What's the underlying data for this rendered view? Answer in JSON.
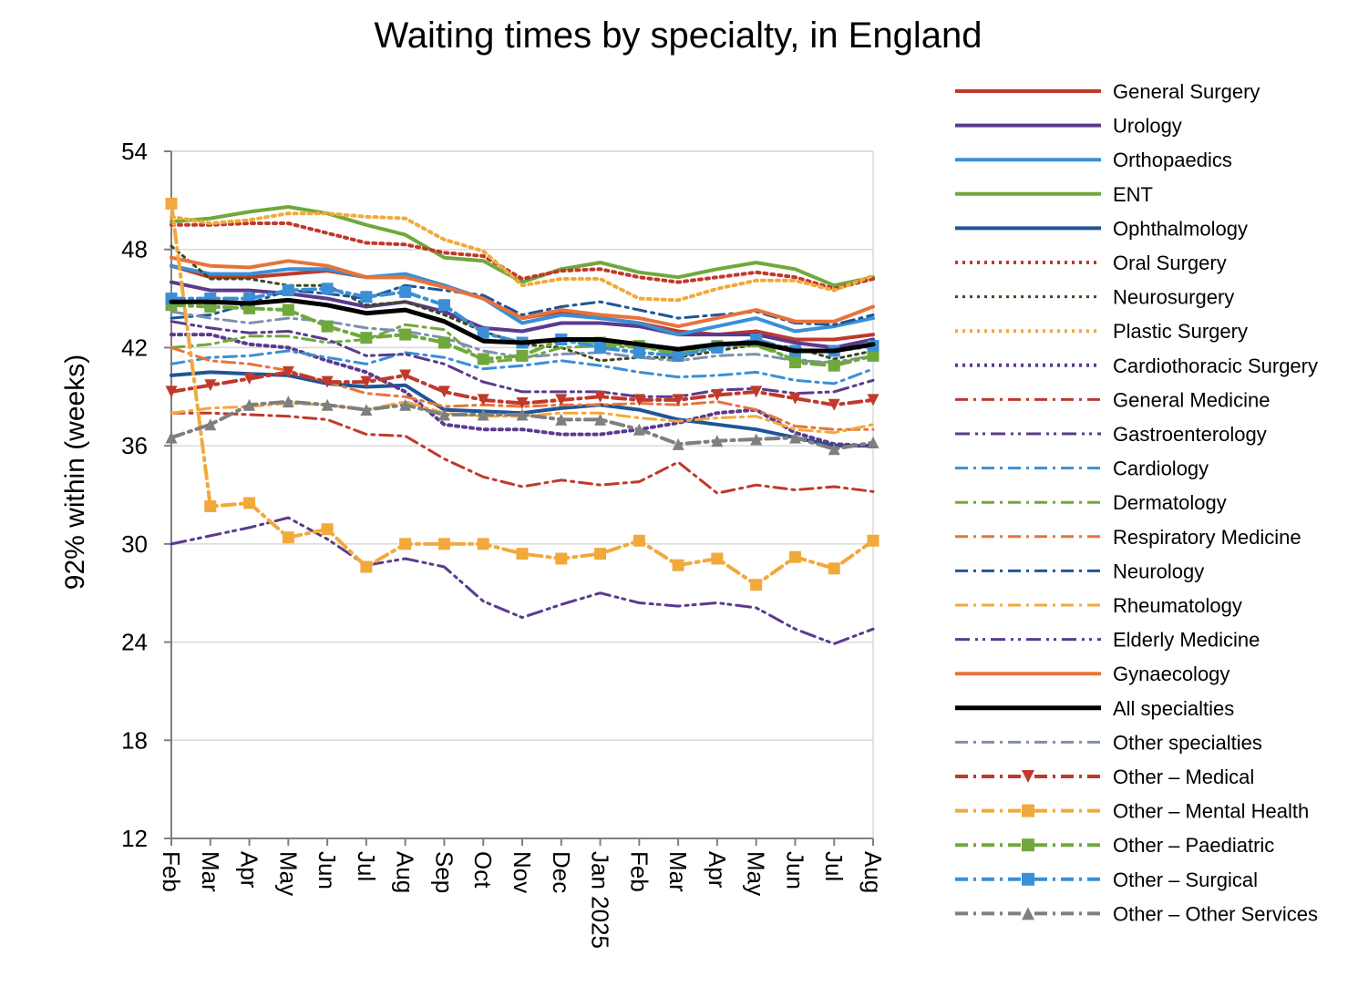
{
  "chart_data": {
    "type": "line",
    "title": "Waiting times by specialty, in England",
    "xlabel": "",
    "ylabel": "92% within  (weeks)",
    "ylim": [
      12,
      54
    ],
    "yticks": [
      12,
      18,
      24,
      30,
      36,
      42,
      48,
      54
    ],
    "grid": "horizontal",
    "legend_position": "right",
    "categories": [
      "Feb",
      "Mar",
      "Apr",
      "May",
      "Jun",
      "Jul",
      "Aug",
      "Sep",
      "Oct",
      "Nov",
      "Dec",
      "Jan 2025",
      "Feb",
      "Mar",
      "Apr",
      "May",
      "Jun",
      "Jul",
      "Aug"
    ],
    "series": [
      {
        "name": "General Surgery",
        "color": "#c0392b",
        "style": "solid",
        "width": 4,
        "values": [
          47.0,
          46.3,
          46.3,
          46.5,
          46.7,
          46.3,
          46.3,
          45.8,
          45.0,
          43.8,
          44.2,
          43.8,
          43.5,
          43.0,
          42.8,
          43.0,
          42.5,
          42.5,
          42.8
        ]
      },
      {
        "name": "Urology",
        "color": "#5b3a8e",
        "style": "solid",
        "width": 4,
        "values": [
          46.0,
          45.5,
          45.5,
          45.3,
          45.0,
          44.5,
          44.8,
          44.2,
          43.2,
          43.0,
          43.5,
          43.5,
          43.3,
          42.8,
          42.8,
          42.8,
          42.3,
          42.0,
          42.5
        ]
      },
      {
        "name": "Orthopaedics",
        "color": "#3a8fd6",
        "style": "solid",
        "width": 4,
        "values": [
          47.0,
          46.5,
          46.5,
          46.8,
          46.8,
          46.3,
          46.5,
          45.8,
          45.0,
          43.5,
          44.0,
          43.8,
          43.5,
          42.8,
          43.3,
          43.8,
          43.0,
          43.3,
          43.8
        ]
      },
      {
        "name": "ENT",
        "color": "#70a83c",
        "style": "solid",
        "width": 4,
        "values": [
          49.7,
          49.9,
          50.3,
          50.6,
          50.2,
          49.5,
          48.9,
          47.5,
          47.3,
          46.0,
          46.8,
          47.2,
          46.6,
          46.3,
          46.8,
          47.2,
          46.8,
          45.8,
          46.3
        ]
      },
      {
        "name": "Ophthalmology",
        "color": "#1f5596",
        "style": "solid",
        "width": 4,
        "values": [
          40.3,
          40.5,
          40.4,
          40.3,
          39.8,
          39.6,
          39.7,
          38.2,
          38.1,
          38.0,
          38.3,
          38.5,
          38.2,
          37.6,
          37.3,
          37.0,
          36.5,
          36.0,
          36.0
        ]
      },
      {
        "name": "Oral Surgery",
        "color": "#c0392b",
        "style": "dot",
        "width": 4,
        "values": [
          49.5,
          49.5,
          49.6,
          49.6,
          49.0,
          48.4,
          48.3,
          47.8,
          47.6,
          46.2,
          46.7,
          46.8,
          46.3,
          46.0,
          46.3,
          46.6,
          46.3,
          45.6,
          46.2
        ]
      },
      {
        "name": "Neurosurgery",
        "color": "#3b4a1e",
        "style": "dot",
        "width": 3,
        "values": [
          48.2,
          46.2,
          46.2,
          45.8,
          45.8,
          44.6,
          44.8,
          44.0,
          43.0,
          42.2,
          42.0,
          41.2,
          41.4,
          41.4,
          41.8,
          42.2,
          42.0,
          41.3,
          41.8
        ]
      },
      {
        "name": "Plastic Surgery",
        "color": "#f2a93b",
        "style": "dot",
        "width": 4,
        "values": [
          50.0,
          49.6,
          49.8,
          50.2,
          50.2,
          50.0,
          49.9,
          48.6,
          47.9,
          45.8,
          46.2,
          46.2,
          45.0,
          44.9,
          45.6,
          46.1,
          46.1,
          45.5,
          46.4
        ]
      },
      {
        "name": "Cardiothoracic Surgery",
        "color": "#5b3a8e",
        "style": "dot",
        "width": 4,
        "values": [
          42.8,
          42.8,
          42.2,
          42.0,
          41.2,
          40.5,
          39.3,
          37.3,
          37.0,
          37.0,
          36.7,
          36.7,
          37.0,
          37.4,
          38.0,
          38.2,
          36.8,
          36.1,
          36.0
        ]
      },
      {
        "name": "General Medicine",
        "color": "#c0392b",
        "style": "dashdot",
        "width": 3,
        "values": [
          38.0,
          38.0,
          37.9,
          37.8,
          37.6,
          36.7,
          36.6,
          35.2,
          34.1,
          33.5,
          33.9,
          33.6,
          33.8,
          35.0,
          33.1,
          33.6,
          33.3,
          33.5,
          33.2
        ]
      },
      {
        "name": "Gastroenterology",
        "color": "#5b3a8e",
        "style": "dashdotdot",
        "width": 3,
        "values": [
          30.0,
          30.5,
          31.0,
          31.6,
          30.3,
          28.7,
          29.1,
          28.6,
          26.5,
          25.5,
          26.3,
          27.0,
          26.4,
          26.2,
          26.4,
          26.1,
          24.8,
          23.9,
          24.8
        ]
      },
      {
        "name": "Cardiology",
        "color": "#3a8fd6",
        "style": "dashdot",
        "width": 3,
        "values": [
          41.0,
          41.4,
          41.5,
          41.8,
          41.4,
          41.0,
          41.7,
          41.4,
          40.7,
          40.9,
          41.2,
          40.9,
          40.5,
          40.2,
          40.3,
          40.5,
          40.0,
          39.8,
          40.7
        ]
      },
      {
        "name": "Dermatology",
        "color": "#70a83c",
        "style": "dashdot",
        "width": 3,
        "values": [
          42.0,
          42.2,
          42.7,
          42.7,
          42.3,
          42.5,
          43.4,
          43.1,
          41.1,
          41.3,
          42.0,
          42.1,
          42.0,
          41.9,
          42.2,
          42.1,
          41.3,
          41.0,
          41.5
        ]
      },
      {
        "name": "Respiratory Medicine",
        "color": "#e8733a",
        "style": "dashdot",
        "width": 3,
        "values": [
          42.0,
          41.2,
          41.0,
          40.6,
          39.9,
          39.2,
          39.0,
          38.4,
          38.5,
          38.4,
          38.5,
          38.5,
          38.6,
          38.5,
          38.7,
          38.2,
          37.2,
          37.0,
          37.0
        ]
      },
      {
        "name": "Neurology",
        "color": "#1f5596",
        "style": "dashdot",
        "width": 3,
        "values": [
          43.8,
          44.0,
          44.7,
          45.5,
          45.3,
          45.0,
          45.8,
          45.5,
          45.2,
          44.0,
          44.5,
          44.8,
          44.3,
          43.8,
          44.0,
          44.2,
          43.5,
          43.4,
          44.0
        ]
      },
      {
        "name": "Rheumatology",
        "color": "#f2a93b",
        "style": "dashdot",
        "width": 3,
        "values": [
          38.0,
          38.3,
          38.4,
          38.6,
          38.5,
          38.2,
          38.7,
          38.0,
          37.8,
          37.8,
          38.0,
          38.0,
          37.7,
          37.5,
          37.7,
          37.8,
          37.0,
          36.8,
          37.3
        ]
      },
      {
        "name": "Elderly Medicine",
        "color": "#5b3a8e",
        "style": "dashdotdot",
        "width": 3,
        "values": [
          43.6,
          43.2,
          42.9,
          43.0,
          42.5,
          41.5,
          41.6,
          41.0,
          39.9,
          39.3,
          39.3,
          39.3,
          39.0,
          39.0,
          39.4,
          39.5,
          39.2,
          39.3,
          40.0
        ]
      },
      {
        "name": "Gynaecology",
        "color": "#e8733a",
        "style": "solid",
        "width": 4,
        "values": [
          47.5,
          47.0,
          46.9,
          47.3,
          47.0,
          46.3,
          46.3,
          45.7,
          45.0,
          43.8,
          44.3,
          44.0,
          43.8,
          43.3,
          43.8,
          44.3,
          43.6,
          43.6,
          44.5
        ]
      },
      {
        "name": "All specialties",
        "color": "#000000",
        "style": "solid",
        "width": 5,
        "values": [
          44.8,
          44.8,
          44.7,
          44.9,
          44.6,
          44.1,
          44.3,
          43.6,
          42.4,
          42.3,
          42.5,
          42.5,
          42.2,
          41.9,
          42.2,
          42.3,
          41.8,
          41.8,
          42.2
        ]
      },
      {
        "name": "Other specialties",
        "color": "#7f8fb0",
        "style": "dashdot",
        "width": 3,
        "marker": "none",
        "values": [
          44.2,
          43.8,
          43.5,
          43.8,
          43.6,
          43.2,
          43.0,
          42.6,
          41.8,
          41.4,
          41.6,
          41.7,
          41.4,
          41.2,
          41.5,
          41.6,
          41.2,
          41.1,
          41.5
        ]
      },
      {
        "name": "Other – Medical",
        "color": "#c0392b",
        "style": "dashdot",
        "width": 4,
        "marker": "triangle-down",
        "values": [
          39.3,
          39.7,
          40.1,
          40.5,
          39.9,
          39.9,
          40.3,
          39.3,
          38.8,
          38.6,
          38.8,
          39.0,
          38.8,
          38.8,
          39.1,
          39.3,
          38.9,
          38.5,
          38.8
        ]
      },
      {
        "name": "Other – Mental Health",
        "color": "#f2a93b",
        "style": "dashdot",
        "width": 4,
        "marker": "square",
        "values": [
          50.8,
          32.3,
          32.5,
          30.4,
          30.9,
          28.6,
          30.0,
          30.0,
          30.0,
          29.4,
          29.1,
          29.4,
          30.2,
          28.7,
          29.1,
          27.5,
          29.2,
          28.5,
          30.2
        ]
      },
      {
        "name": "Other – Paediatric",
        "color": "#70a83c",
        "style": "dashdot",
        "width": 4,
        "marker": "square",
        "values": [
          44.6,
          44.5,
          44.4,
          44.3,
          43.3,
          42.6,
          42.8,
          42.3,
          41.3,
          41.5,
          42.5,
          42.3,
          42.1,
          41.6,
          42.1,
          42.4,
          41.1,
          40.9,
          41.5
        ]
      },
      {
        "name": "Other – Surgical",
        "color": "#3a8fd6",
        "style": "dashdot",
        "width": 4,
        "marker": "square",
        "values": [
          45.0,
          45.0,
          45.0,
          45.5,
          45.6,
          45.1,
          45.4,
          44.6,
          42.9,
          42.3,
          42.5,
          42.0,
          41.7,
          41.5,
          42.0,
          42.5,
          41.8,
          41.8,
          42.1
        ]
      },
      {
        "name": "Other – Other Services",
        "color": "#7f7f7f",
        "style": "dashdot",
        "width": 4,
        "marker": "triangle-up",
        "values": [
          36.5,
          37.3,
          38.5,
          38.7,
          38.5,
          38.2,
          38.5,
          37.9,
          37.9,
          37.9,
          37.6,
          37.6,
          37.0,
          36.1,
          36.3,
          36.4,
          36.5,
          35.8,
          36.2
        ]
      }
    ]
  }
}
